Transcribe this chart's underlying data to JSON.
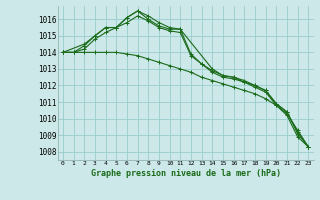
{
  "background_color": "#cce8e8",
  "grid_color": "#99cccc",
  "line_color": "#1a6b1a",
  "title": "Graphe pression niveau de la mer (hPa)",
  "xlabel_ticks": [
    0,
    1,
    2,
    3,
    4,
    5,
    6,
    7,
    8,
    9,
    10,
    11,
    12,
    13,
    14,
    15,
    16,
    17,
    18,
    19,
    20,
    21,
    22,
    23
  ],
  "ylim": [
    1007.5,
    1016.8
  ],
  "yticks": [
    1008,
    1009,
    1010,
    1011,
    1012,
    1013,
    1014,
    1015,
    1016
  ],
  "series": [
    {
      "x": [
        0,
        2,
        3,
        4,
        5,
        6,
        7,
        8,
        9,
        10,
        11,
        14,
        15,
        16,
        17,
        18,
        19,
        20,
        21,
        22,
        23
      ],
      "y": [
        1014.0,
        1014.5,
        1015.0,
        1015.5,
        1015.5,
        1016.1,
        1016.5,
        1016.0,
        1015.6,
        1015.4,
        1015.4,
        1013.0,
        1012.6,
        1012.5,
        1012.3,
        1012.0,
        1011.7,
        1010.9,
        1010.4,
        1009.1,
        1008.3
      ]
    },
    {
      "x": [
        0,
        1,
        2,
        3,
        4,
        5,
        6,
        7,
        8,
        9,
        10,
        11,
        12,
        13,
        14,
        15,
        16,
        17,
        18,
        19,
        20,
        21,
        22,
        23
      ],
      "y": [
        1014.0,
        1014.0,
        1014.4,
        1015.0,
        1015.5,
        1015.5,
        1016.1,
        1016.5,
        1016.2,
        1015.8,
        1015.5,
        1015.4,
        1013.9,
        1013.3,
        1012.9,
        1012.6,
        1012.5,
        1012.2,
        1012.0,
        1011.7,
        1010.9,
        1010.4,
        1009.2,
        1008.3
      ]
    },
    {
      "x": [
        0,
        1,
        2,
        3,
        4,
        5,
        6,
        7,
        8,
        9,
        10,
        11,
        12,
        13,
        14,
        15,
        16,
        17,
        18,
        19,
        20,
        21,
        22,
        23
      ],
      "y": [
        1014.0,
        1014.0,
        1014.2,
        1014.8,
        1015.2,
        1015.5,
        1015.8,
        1016.2,
        1015.9,
        1015.5,
        1015.3,
        1015.2,
        1013.8,
        1013.3,
        1012.8,
        1012.5,
        1012.4,
        1012.2,
        1011.9,
        1011.6,
        1010.8,
        1010.2,
        1008.9,
        1008.3
      ]
    },
    {
      "x": [
        0,
        1,
        2,
        3,
        4,
        5,
        6,
        7,
        8,
        9,
        10,
        11,
        12,
        13,
        14,
        15,
        16,
        17,
        18,
        19,
        20,
        21,
        22,
        23
      ],
      "y": [
        1014.0,
        1014.0,
        1014.0,
        1014.0,
        1014.0,
        1014.0,
        1013.9,
        1013.8,
        1013.6,
        1013.4,
        1013.2,
        1013.0,
        1012.8,
        1012.5,
        1012.3,
        1012.1,
        1011.9,
        1011.7,
        1011.5,
        1011.2,
        1010.8,
        1010.3,
        1009.3,
        1008.3
      ]
    }
  ]
}
